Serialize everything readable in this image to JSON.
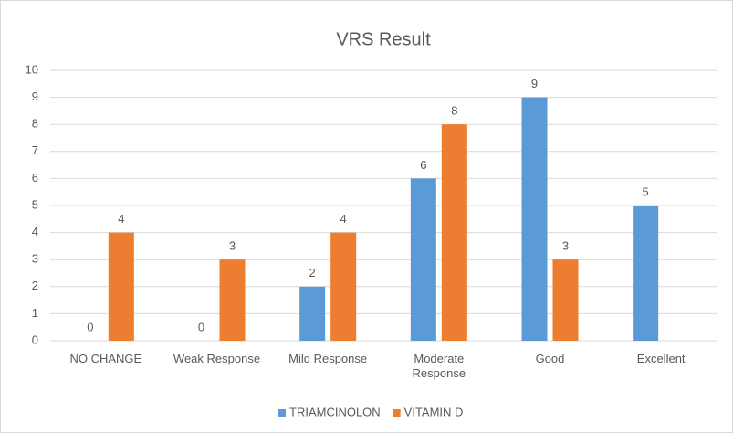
{
  "chart_data": {
    "type": "bar",
    "title": "VRS Result",
    "categories": [
      "NO CHANGE",
      "Weak Response",
      "Mild Response",
      "Moderate Response",
      "Good",
      "Excellent"
    ],
    "series": [
      {
        "name": "TRIAMCINOLON",
        "color": "#5b9bd5",
        "values": [
          0,
          0,
          2,
          6,
          9,
          5
        ]
      },
      {
        "name": "VITAMIN D",
        "color": "#ed7d31",
        "values": [
          4,
          3,
          4,
          8,
          3,
          null
        ]
      }
    ],
    "ylim": [
      0,
      10
    ],
    "yticks": [
      0,
      1,
      2,
      3,
      4,
      5,
      6,
      7,
      8,
      9,
      10
    ],
    "grid": true,
    "legend": "bottom"
  }
}
